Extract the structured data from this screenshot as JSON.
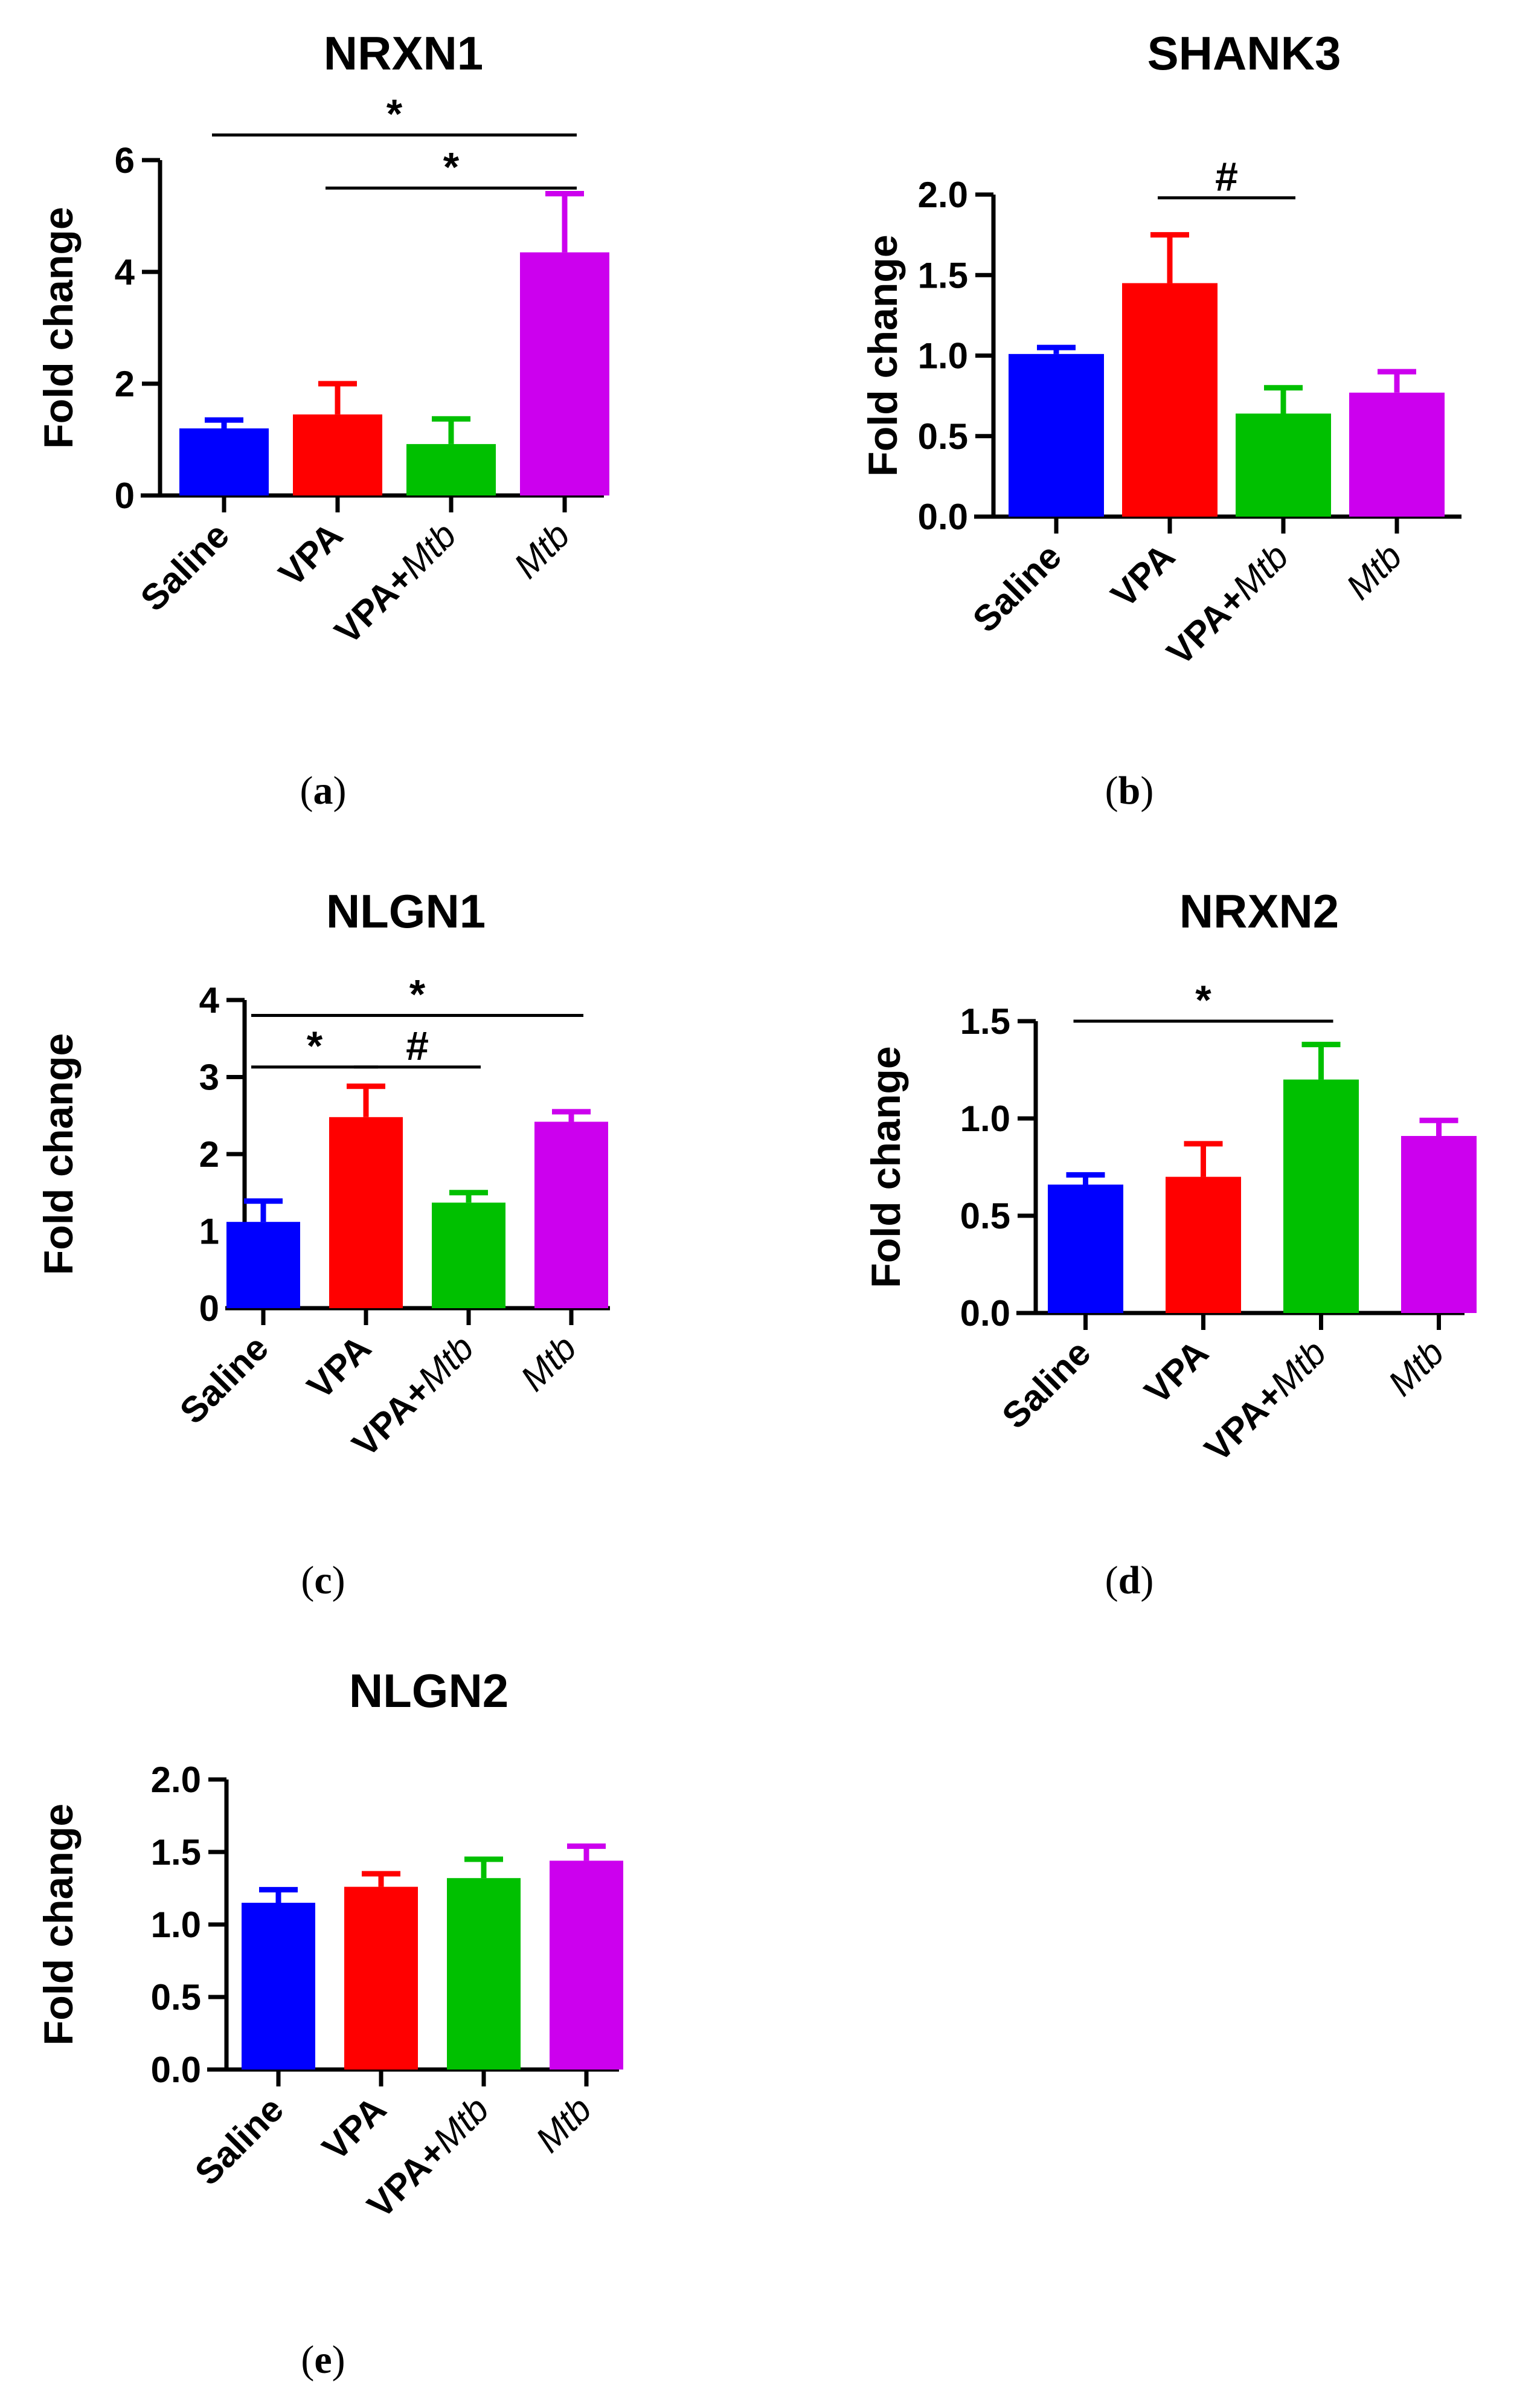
{
  "chart_data": [
    {
      "type": "bar",
      "title": "NRXN1",
      "ylabel": "Fold change",
      "panel_label": "(a)",
      "categories": [
        {
          "main": "Saline",
          "italic": ""
        },
        {
          "main": "VPA",
          "italic": ""
        },
        {
          "main": "VPA+",
          "italic": "Mtb"
        },
        {
          "main": "",
          "italic": "Mtb"
        }
      ],
      "values": [
        1.2,
        1.45,
        0.92,
        4.35
      ],
      "errors": [
        0.15,
        0.55,
        0.45,
        1.05
      ],
      "colors": [
        "#0000ff",
        "#ff0000",
        "#00c000",
        "#cc00ee"
      ],
      "ylim": [
        0,
        6
      ],
      "yticks": [
        "0",
        "2",
        "4",
        "6"
      ],
      "significance": [
        {
          "from": 0,
          "to": 3,
          "symbol": "*",
          "level": 6.45
        },
        {
          "from": 1,
          "to": 3,
          "symbol": "*",
          "level": 5.5
        }
      ]
    },
    {
      "type": "bar",
      "title": "SHANK3",
      "ylabel": "Fold change",
      "panel_label": "(b)",
      "categories": [
        {
          "main": "Saline",
          "italic": ""
        },
        {
          "main": "VPA",
          "italic": ""
        },
        {
          "main": "VPA+",
          "italic": "Mtb"
        },
        {
          "main": "",
          "italic": "Mtb"
        }
      ],
      "values": [
        1.01,
        1.45,
        0.64,
        0.77
      ],
      "errors": [
        0.04,
        0.3,
        0.16,
        0.13
      ],
      "colors": [
        "#0000ff",
        "#ff0000",
        "#00c000",
        "#cc00ee"
      ],
      "ylim": [
        0,
        2.0
      ],
      "yticks": [
        "0.0",
        "0.5",
        "1.0",
        "1.5",
        "2.0"
      ],
      "significance": [
        {
          "from": 1,
          "to": 2,
          "symbol": "#",
          "level": 1.98
        }
      ]
    },
    {
      "type": "bar",
      "title": "NLGN1",
      "ylabel": "Fold change",
      "panel_label": "(c)",
      "categories": [
        {
          "main": "Saline",
          "italic": ""
        },
        {
          "main": "VPA",
          "italic": ""
        },
        {
          "main": "VPA+",
          "italic": "Mtb"
        },
        {
          "main": "",
          "italic": "Mtb"
        }
      ],
      "values": [
        1.12,
        2.48,
        1.37,
        2.42
      ],
      "errors": [
        0.27,
        0.4,
        0.13,
        0.13
      ],
      "colors": [
        "#0000ff",
        "#ff0000",
        "#00c000",
        "#cc00ee"
      ],
      "ylim": [
        0,
        4
      ],
      "yticks": [
        "0",
        "1",
        "2",
        "3",
        "4"
      ],
      "significance": [
        {
          "from": 0,
          "to": 3,
          "symbol": "*",
          "level": 3.8
        },
        {
          "from": 0,
          "to": 1,
          "symbol": "*",
          "level": 3.13
        },
        {
          "from": 1,
          "to": 2,
          "symbol": "#",
          "level": 3.13
        }
      ]
    },
    {
      "type": "bar",
      "title": "NRXN2",
      "ylabel": "Fold change",
      "panel_label": "(d)",
      "categories": [
        {
          "main": "Saline",
          "italic": ""
        },
        {
          "main": "VPA",
          "italic": ""
        },
        {
          "main": "VPA+",
          "italic": "Mtb"
        },
        {
          "main": "",
          "italic": "Mtb"
        }
      ],
      "values": [
        0.66,
        0.7,
        1.2,
        0.91
      ],
      "errors": [
        0.05,
        0.17,
        0.18,
        0.08
      ],
      "colors": [
        "#0000ff",
        "#ff0000",
        "#00c000",
        "#cc00ee"
      ],
      "ylim": [
        0,
        1.5
      ],
      "yticks": [
        "0.0",
        "0.5",
        "1.0",
        "1.5"
      ],
      "significance": [
        {
          "from": 0,
          "to": 2,
          "symbol": "*",
          "level": 1.5
        }
      ]
    },
    {
      "type": "bar",
      "title": "NLGN2",
      "ylabel": "Fold change",
      "panel_label": "(e)",
      "categories": [
        {
          "main": "Saline",
          "italic": ""
        },
        {
          "main": "VPA",
          "italic": ""
        },
        {
          "main": "VPA+",
          "italic": "Mtb"
        },
        {
          "main": "",
          "italic": "Mtb"
        }
      ],
      "values": [
        1.15,
        1.26,
        1.32,
        1.44
      ],
      "errors": [
        0.09,
        0.09,
        0.13,
        0.1
      ],
      "colors": [
        "#0000ff",
        "#ff0000",
        "#00c000",
        "#cc00ee"
      ],
      "ylim": [
        0,
        2.0
      ],
      "yticks": [
        "0.0",
        "0.5",
        "1.0",
        "1.5",
        "2.0"
      ],
      "significance": []
    }
  ]
}
